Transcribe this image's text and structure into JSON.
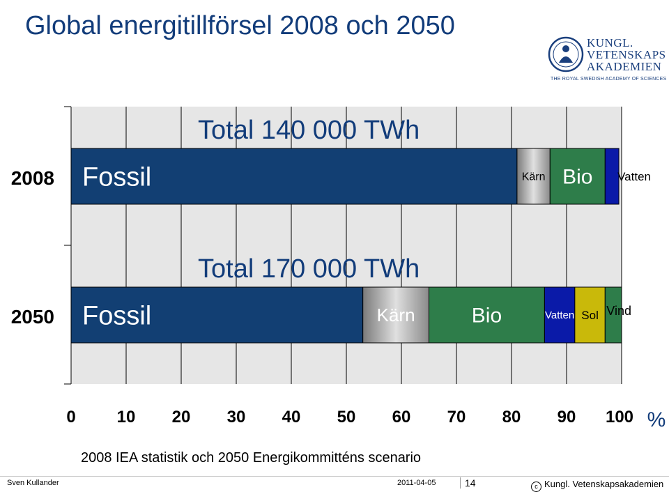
{
  "slide": {
    "title": "Global energitillförsel 2008 och 2050",
    "caption": "2008 IEA statistik och 2050 Energikommitténs scenario"
  },
  "logo": {
    "line1": "KUNGL.",
    "line2": "VETENSKAPS",
    "line3": "AKADEMIEN",
    "subtitle": "THE ROYAL SWEDISH ACADEMY OF SCIENCES",
    "color": "#1a3f7d"
  },
  "footer": {
    "author": "Sven Kullander",
    "date": "2011-04-05",
    "page": "14",
    "copyright": "Kungl. Vetenskapsakademien"
  },
  "chart_data": {
    "type": "bar",
    "orientation": "horizontal",
    "stacked": true,
    "categories": [
      "2008",
      "2050"
    ],
    "xlim": [
      0,
      100
    ],
    "xticks": [
      "0",
      "10",
      "20",
      "30",
      "40",
      "50",
      "60",
      "70",
      "80",
      "90",
      "100"
    ],
    "xunit": "%",
    "grid": true,
    "totals": [
      "Total 140 000 TWh",
      "Total 170 000 TWh"
    ],
    "series": [
      {
        "name": "Fossil",
        "color": "#123f73",
        "values": [
          81,
          53
        ]
      },
      {
        "name": "Kärn",
        "color": "#a8a8a8",
        "values": [
          6,
          12
        ]
      },
      {
        "name": "Bio",
        "color": "#2e7d4a",
        "values": [
          10,
          21
        ]
      },
      {
        "name": "Vatten",
        "color": "#0a1aa8",
        "values": [
          2.5,
          5.5
        ]
      },
      {
        "name": "Sol",
        "color": "#c9b90a",
        "values": [
          0,
          5.5
        ]
      },
      {
        "name": "Vind",
        "color": "#2e7d4a",
        "values": [
          0,
          3
        ]
      }
    ]
  }
}
